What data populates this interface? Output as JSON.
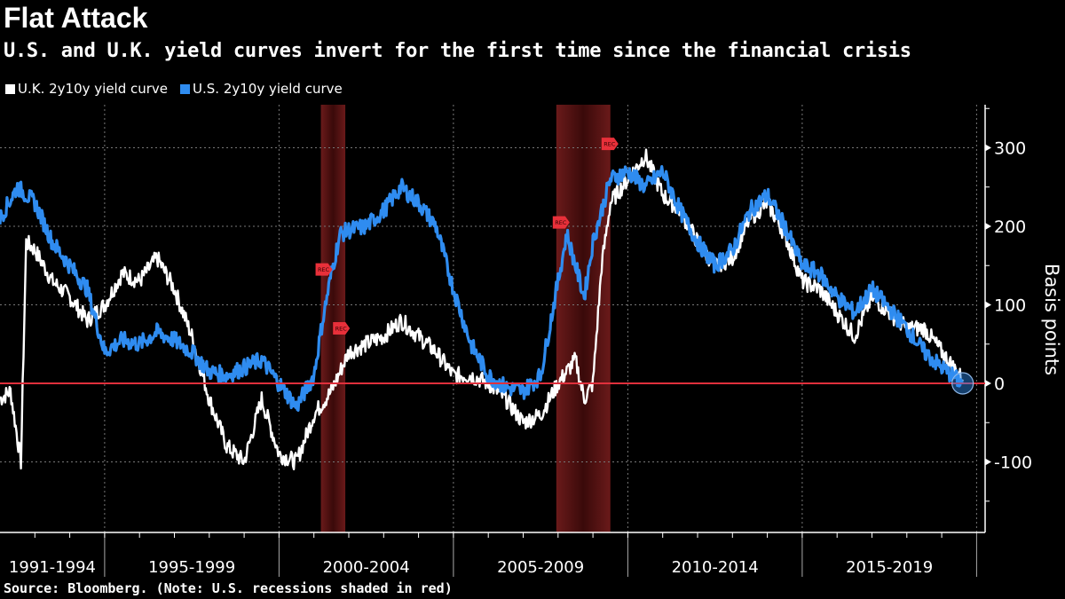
{
  "title": "Flat Attack",
  "subtitle": "U.S. and U.K. yield curves invert for the first time since the financial crisis",
  "source": "Source: Bloomberg. (Note: U.S. recessions shaded in red)",
  "chart_data": {
    "type": "line",
    "ylabel": "Basis points",
    "ylim": [
      -190,
      355
    ],
    "xlim": [
      1992.0,
      2020.0
    ],
    "yticks": [
      -100,
      0,
      100,
      200,
      300
    ],
    "x_category_labels": [
      "1991-1994",
      "1995-1999",
      "2000-2004",
      "2005-2009",
      "2010-2014",
      "2015-2019"
    ],
    "grid": true,
    "legend_position": "top-left",
    "zero_line_color": "#e0303c",
    "recessions": [
      [
        2001.2,
        2001.9
      ],
      [
        2007.95,
        2009.5
      ]
    ],
    "recession_color": "#5a1414",
    "annotations": [
      {
        "label": "REC",
        "x": 2001.2,
        "y": 145
      },
      {
        "label": "REC",
        "x": 2001.7,
        "y": 70
      },
      {
        "label": "REC",
        "x": 2008.0,
        "y": 205
      },
      {
        "label": "REC",
        "x": 2009.4,
        "y": 305
      }
    ],
    "series": [
      {
        "name": "U.K. 2y10y yield curve",
        "color": "#ffffff",
        "x": [
          1992.0,
          1992.3,
          1992.6,
          1992.75,
          1993.0,
          1993.5,
          1994.0,
          1994.5,
          1995.0,
          1995.5,
          1996.0,
          1996.5,
          1997.0,
          1997.5,
          1998.0,
          1998.5,
          1999.0,
          1999.5,
          2000.0,
          2000.5,
          2001.0,
          2001.5,
          2002.0,
          2002.5,
          2003.0,
          2003.5,
          2004.0,
          2004.5,
          2005.0,
          2005.5,
          2006.0,
          2006.5,
          2007.0,
          2007.5,
          2008.0,
          2008.5,
          2008.75,
          2009.0,
          2009.25,
          2009.5,
          2010.0,
          2010.5,
          2011.0,
          2011.5,
          2012.0,
          2012.5,
          2013.0,
          2013.5,
          2014.0,
          2014.5,
          2015.0,
          2015.5,
          2016.0,
          2016.5,
          2017.0,
          2017.5,
          2018.0,
          2018.5,
          2019.0,
          2019.6
        ],
        "y": [
          -20,
          -10,
          -100,
          180,
          170,
          130,
          110,
          80,
          100,
          140,
          130,
          160,
          120,
          60,
          -20,
          -80,
          -100,
          -20,
          -90,
          -100,
          -40,
          -10,
          40,
          50,
          60,
          80,
          60,
          40,
          10,
          10,
          0,
          -20,
          -50,
          -40,
          0,
          30,
          -20,
          0,
          150,
          230,
          260,
          290,
          240,
          220,
          180,
          150,
          160,
          210,
          230,
          190,
          130,
          120,
          90,
          60,
          110,
          90,
          70,
          70,
          40,
          5
        ]
      },
      {
        "name": "U.S. 2y10y yield curve",
        "color": "#2f8cf0",
        "x": [
          1992.0,
          1992.5,
          1993.0,
          1993.5,
          1994.0,
          1994.5,
          1995.0,
          1995.5,
          1996.0,
          1996.5,
          1997.0,
          1997.5,
          1998.0,
          1998.5,
          1999.0,
          1999.5,
          2000.0,
          2000.5,
          2001.0,
          2001.25,
          2001.5,
          2001.75,
          2002.0,
          2002.5,
          2003.0,
          2003.5,
          2004.0,
          2004.5,
          2005.0,
          2005.5,
          2006.0,
          2006.5,
          2007.0,
          2007.5,
          2008.0,
          2008.25,
          2008.5,
          2008.75,
          2009.0,
          2009.5,
          2010.0,
          2010.5,
          2011.0,
          2011.5,
          2012.0,
          2012.5,
          2013.0,
          2013.5,
          2014.0,
          2014.5,
          2015.0,
          2015.5,
          2016.0,
          2016.5,
          2017.0,
          2017.5,
          2018.0,
          2018.5,
          2019.0,
          2019.6
        ],
        "y": [
          210,
          250,
          230,
          180,
          150,
          120,
          40,
          55,
          50,
          65,
          55,
          40,
          15,
          10,
          20,
          30,
          0,
          -30,
          10,
          80,
          140,
          190,
          195,
          200,
          220,
          250,
          230,
          200,
          120,
          50,
          10,
          -5,
          -10,
          10,
          130,
          190,
          150,
          110,
          180,
          260,
          270,
          250,
          270,
          220,
          180,
          150,
          170,
          220,
          240,
          200,
          150,
          140,
          110,
          90,
          120,
          95,
          70,
          40,
          20,
          0
        ]
      }
    ]
  }
}
